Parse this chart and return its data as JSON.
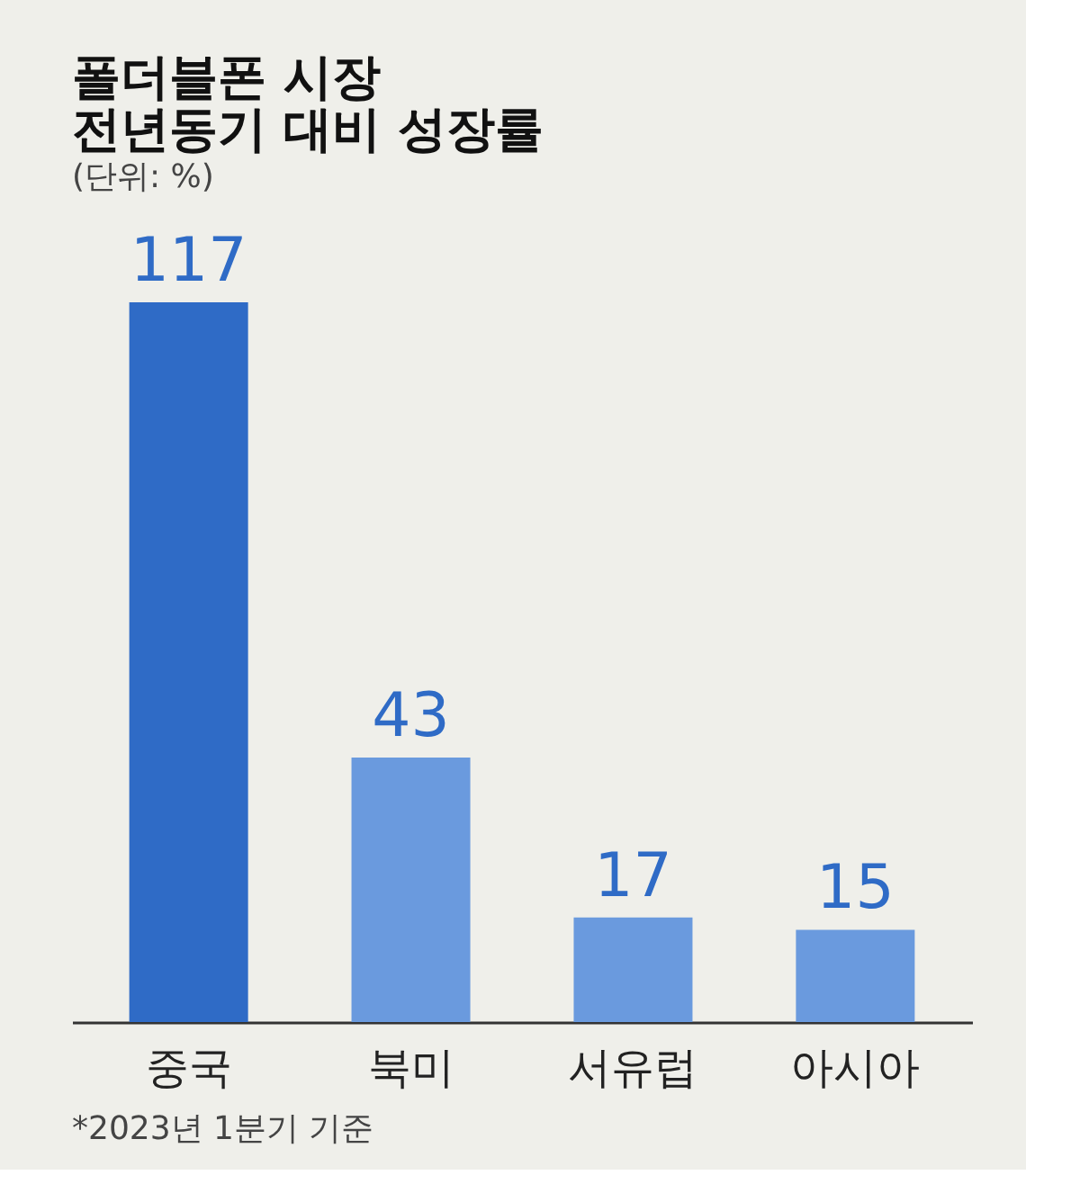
{
  "chart_data": {
    "type": "bar",
    "title": [
      "폴더블폰 시장",
      "전년동기 대비 성장률"
    ],
    "subtitle": "(단위: %)",
    "categories": [
      "중국",
      "북미",
      "서유럽",
      "아시아"
    ],
    "values": [
      117,
      43,
      17,
      15
    ],
    "colors": [
      "#2f6bc6",
      "#6a9ade",
      "#6a9ade",
      "#6a9ade"
    ],
    "data_labels": true,
    "annotations": [
      "*2023년 1분기 기준"
    ]
  }
}
